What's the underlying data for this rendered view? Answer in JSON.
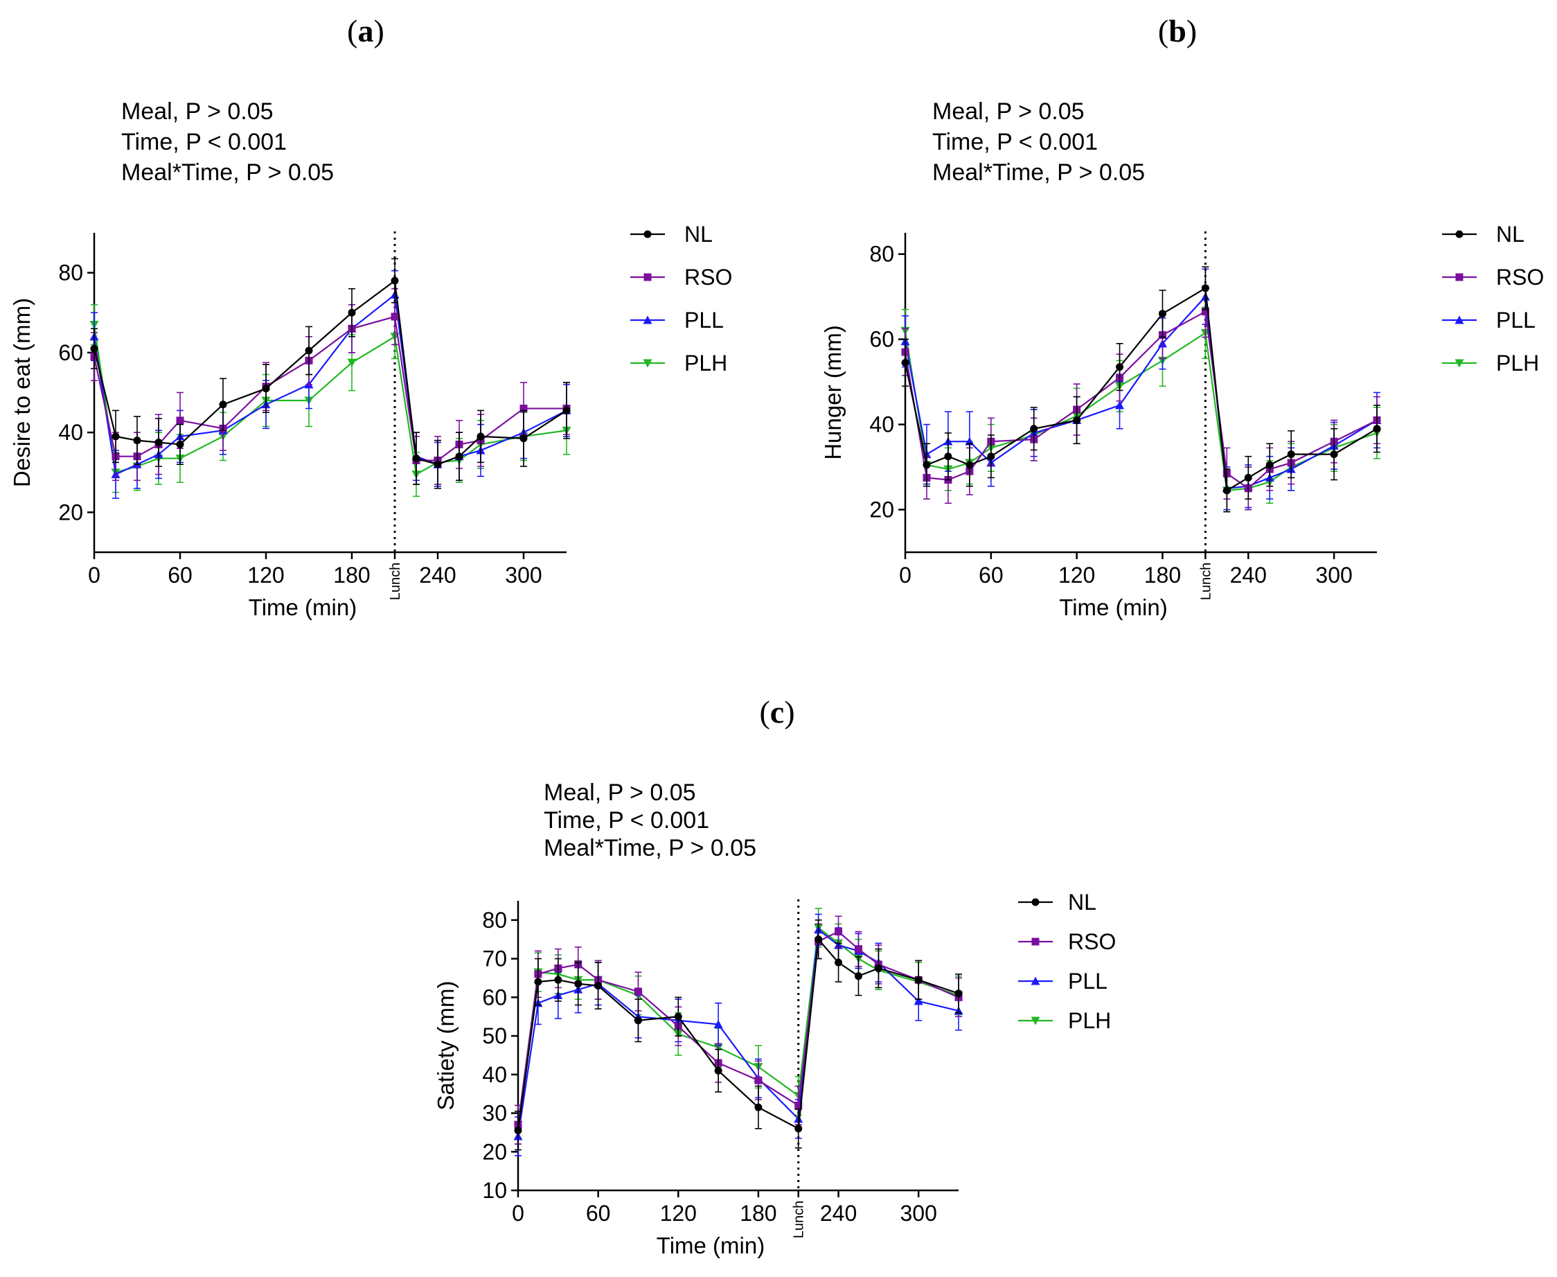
{
  "legend_entries": [
    "NL",
    "RSO",
    "PLL",
    "PLH"
  ],
  "colors": {
    "NL": "#000000",
    "RSO": "#7b0f9e",
    "PLL": "#1a1aff",
    "PLH": "#22b722"
  },
  "chart_data": [
    {
      "panel": "(a)",
      "panel_letter": "a",
      "type": "line",
      "ylabel": "Desire to eat (mm)",
      "xlabel": "Time (min)",
      "lunch_label": "Lunch",
      "lunch_x": 210,
      "xlim": [
        0,
        330
      ],
      "ylim": [
        10,
        90
      ],
      "x_ticks": [
        0,
        60,
        120,
        180,
        240,
        300
      ],
      "y_ticks": [
        20,
        40,
        60,
        80
      ],
      "stats": [
        "Meal, P > 0.05",
        "Time, P < 0.001",
        "Meal*Time, P > 0.05"
      ],
      "x": [
        0,
        15,
        30,
        45,
        60,
        90,
        120,
        150,
        180,
        210,
        225,
        240,
        255,
        270,
        300,
        330
      ],
      "series": [
        {
          "name": "NL",
          "values": [
            61,
            39,
            38,
            37.5,
            37,
            47,
            51,
            60.5,
            70,
            78,
            33.5,
            32,
            34,
            39,
            38.5,
            45.5
          ],
          "errors": [
            5,
            6.5,
            6,
            6,
            5,
            6.5,
            6,
            6,
            6,
            5.5,
            6.5,
            6,
            6,
            6.5,
            7,
            7
          ]
        },
        {
          "name": "RSO",
          "values": [
            59,
            34,
            34,
            37,
            43,
            41,
            51.5,
            58,
            66,
            69,
            33,
            33,
            37,
            38,
            46,
            46
          ],
          "errors": [
            6,
            6,
            6,
            7.5,
            7,
            5.5,
            6,
            6,
            6,
            7,
            6,
            6,
            6,
            6.5,
            6.5,
            6.5
          ]
        },
        {
          "name": "PLL",
          "values": [
            64,
            29.5,
            32,
            34.5,
            39,
            40.5,
            47,
            52,
            66,
            74.5,
            34,
            32,
            34,
            35.5,
            40,
            45.5
          ],
          "errors": [
            6,
            6,
            6,
            6,
            6.5,
            6,
            6,
            6,
            6,
            6,
            6,
            5.5,
            6,
            6.5,
            6.5,
            6.5
          ]
        },
        {
          "name": "PLH",
          "values": [
            67,
            30,
            31.5,
            33.5,
            33.5,
            39,
            48,
            48,
            57.5,
            64,
            29.5,
            32.5,
            33,
            37,
            39,
            40.5
          ],
          "errors": [
            5,
            5,
            6,
            6.5,
            6,
            6,
            6.5,
            6.5,
            7,
            5.5,
            5.5,
            5.5,
            5.5,
            6,
            6,
            6
          ]
        }
      ]
    },
    {
      "panel": "(b)",
      "panel_letter": "b",
      "type": "line",
      "ylabel": "Hunger (mm)",
      "xlabel": "Time (min)",
      "lunch_label": "Lunch",
      "lunch_x": 210,
      "xlim": [
        0,
        330
      ],
      "ylim": [
        10,
        85
      ],
      "x_ticks": [
        0,
        60,
        120,
        180,
        240,
        300
      ],
      "y_ticks": [
        20,
        40,
        60,
        80
      ],
      "stats": [
        "Meal, P > 0.05",
        "Time, P < 0.001",
        "Meal*Time, P > 0.05"
      ],
      "x": [
        0,
        15,
        30,
        45,
        60,
        90,
        120,
        150,
        180,
        210,
        225,
        240,
        255,
        270,
        300,
        330
      ],
      "series": [
        {
          "name": "NL",
          "values": [
            54.5,
            30.5,
            32.5,
            30.5,
            32.5,
            39,
            41,
            53.5,
            66,
            72,
            24.5,
            27.5,
            30.5,
            33,
            33,
            39
          ],
          "errors": [
            5.5,
            5,
            5.5,
            5,
            5,
            5,
            5.5,
            5.5,
            5.5,
            5,
            5,
            5,
            5,
            5.5,
            6,
            5.5
          ]
        },
        {
          "name": "RSO",
          "values": [
            57,
            27.5,
            27,
            29,
            36,
            36.5,
            43.5,
            51,
            61,
            66.5,
            28.5,
            25,
            29.5,
            31,
            36,
            41
          ],
          "errors": [
            5.5,
            5,
            5.5,
            5.5,
            5.5,
            5,
            6,
            5.5,
            5.5,
            6,
            6,
            5,
            5,
            5,
            5,
            5.5
          ]
        },
        {
          "name": "PLL",
          "values": [
            59.5,
            33,
            36,
            36,
            31,
            38,
            41,
            44.5,
            59,
            70,
            25,
            25.5,
            27.5,
            29.5,
            35,
            41
          ],
          "errors": [
            6,
            7,
            7,
            7,
            5.5,
            5.5,
            5.5,
            5.5,
            6,
            6.5,
            5,
            5,
            5,
            5,
            5.5,
            6.5
          ]
        },
        {
          "name": "PLH",
          "values": [
            62,
            30.5,
            29.5,
            31,
            34.5,
            37.5,
            42,
            49,
            55,
            61.5,
            24.5,
            25,
            26.5,
            30,
            34.5,
            38
          ],
          "errors": [
            5,
            5,
            5,
            5,
            5.5,
            6,
            6.5,
            6,
            6,
            6,
            5,
            5,
            5,
            5.5,
            5.5,
            6
          ]
        }
      ]
    },
    {
      "panel": "(c)",
      "panel_letter": "c",
      "type": "line",
      "ylabel": "Satiety (mm)",
      "xlabel": "Time (min)",
      "lunch_label": "Lunch",
      "lunch_x": 210,
      "xlim": [
        0,
        330
      ],
      "ylim": [
        10,
        85
      ],
      "x_ticks": [
        0,
        60,
        120,
        180,
        240,
        300
      ],
      "y_ticks": [
        10,
        20,
        30,
        40,
        50,
        60,
        70,
        80
      ],
      "stats": [
        "Meal, P > 0.05",
        "Time, P < 0.001",
        "Meal*Time, P > 0.05"
      ],
      "x": [
        0,
        15,
        30,
        45,
        60,
        90,
        120,
        150,
        180,
        210,
        225,
        240,
        255,
        270,
        300,
        330
      ],
      "series": [
        {
          "name": "NL",
          "values": [
            25.5,
            64,
            64.5,
            63.5,
            63,
            54,
            55,
            41,
            31.5,
            26,
            75,
            69,
            65.5,
            67.5,
            64.5,
            61
          ],
          "errors": [
            5,
            6,
            5.5,
            5.5,
            6,
            5.5,
            5,
            5.5,
            5.5,
            5,
            5,
            5,
            5,
            5,
            5,
            5
          ]
        },
        {
          "name": "RSO",
          "values": [
            27,
            66,
            67.5,
            68.5,
            64.5,
            61.5,
            52.5,
            43,
            38.5,
            32,
            74.5,
            77,
            72.5,
            68.5,
            64.5,
            60
          ],
          "errors": [
            5,
            6,
            5,
            4.5,
            5,
            5,
            5,
            5,
            5,
            5,
            4.5,
            4,
            4.5,
            5,
            5,
            5
          ]
        },
        {
          "name": "PLL",
          "values": [
            24,
            58.5,
            60.5,
            62,
            63.5,
            55,
            54,
            53,
            39,
            28.5,
            77.5,
            73.5,
            72,
            69,
            59,
            56.5
          ],
          "errors": [
            5,
            5.5,
            6,
            6,
            5.5,
            5.5,
            5.5,
            5.5,
            5,
            5,
            4,
            4.5,
            4.5,
            5,
            5,
            5
          ]
        },
        {
          "name": "PLH",
          "values": [
            27,
            66.5,
            66,
            64.5,
            64.5,
            60.5,
            50.5,
            47,
            42,
            34.5,
            78,
            74,
            70,
            67,
            64,
            60.5
          ],
          "errors": [
            5,
            5,
            5,
            5,
            5,
            5,
            5.5,
            5,
            5.5,
            5,
            5,
            5,
            5,
            5,
            5,
            5
          ]
        }
      ]
    }
  ]
}
